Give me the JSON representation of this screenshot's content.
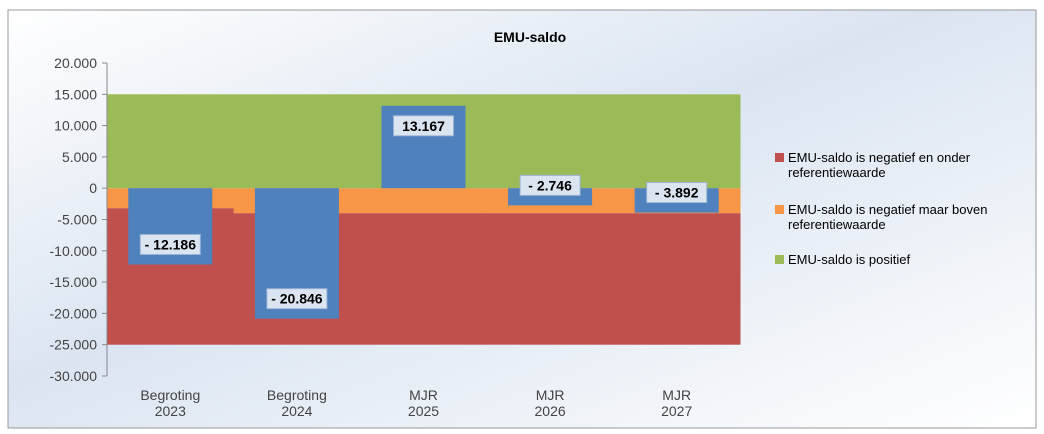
{
  "chart_data": {
    "type": "bar",
    "title": "EMU-saldo",
    "categories": [
      [
        "Begroting",
        "2023"
      ],
      [
        "Begroting",
        "2024"
      ],
      [
        "MJR",
        "2025"
      ],
      [
        "MJR",
        "2026"
      ],
      [
        "MJR",
        "2027"
      ]
    ],
    "series": [
      {
        "name": "EMU-saldo is negatief en onder referentiewaarde",
        "color": "#c0504d",
        "values": [
          -21800,
          -21000,
          -21000,
          -21000,
          -21000
        ]
      },
      {
        "name": "EMU-saldo is negatief maar boven referentiewaarde",
        "color": "#f79646",
        "values": [
          -3200,
          -4000,
          -4000,
          -4000,
          -4000
        ]
      },
      {
        "name": "EMU-saldo is positief",
        "color": "#9bbb59",
        "values": [
          15000,
          15000,
          15000,
          15000,
          15000
        ]
      }
    ],
    "bars": {
      "color": "#4f81bd",
      "values": [
        -12186,
        -20846,
        13167,
        -2746,
        -3892
      ],
      "value_labels": [
        "- 12.186",
        "- 20.846",
        "13.167",
        "- 2.746",
        "- 3.892"
      ]
    },
    "ylim": [
      -30000,
      20000
    ],
    "yticks": [
      {
        "value": -30000,
        "label": "-30.000"
      },
      {
        "value": -25000,
        "label": "-25.000"
      },
      {
        "value": -20000,
        "label": "-20.000"
      },
      {
        "value": -15000,
        "label": "-15.000"
      },
      {
        "value": -10000,
        "label": "-10.000"
      },
      {
        "value": -5000,
        "label": "-5.000"
      },
      0,
      {
        "value": 5000,
        "label": "5.000"
      },
      {
        "value": 10000,
        "label": "10.000"
      },
      {
        "value": 15000,
        "label": "15.000"
      },
      {
        "value": 20000,
        "label": "20.000"
      }
    ]
  }
}
